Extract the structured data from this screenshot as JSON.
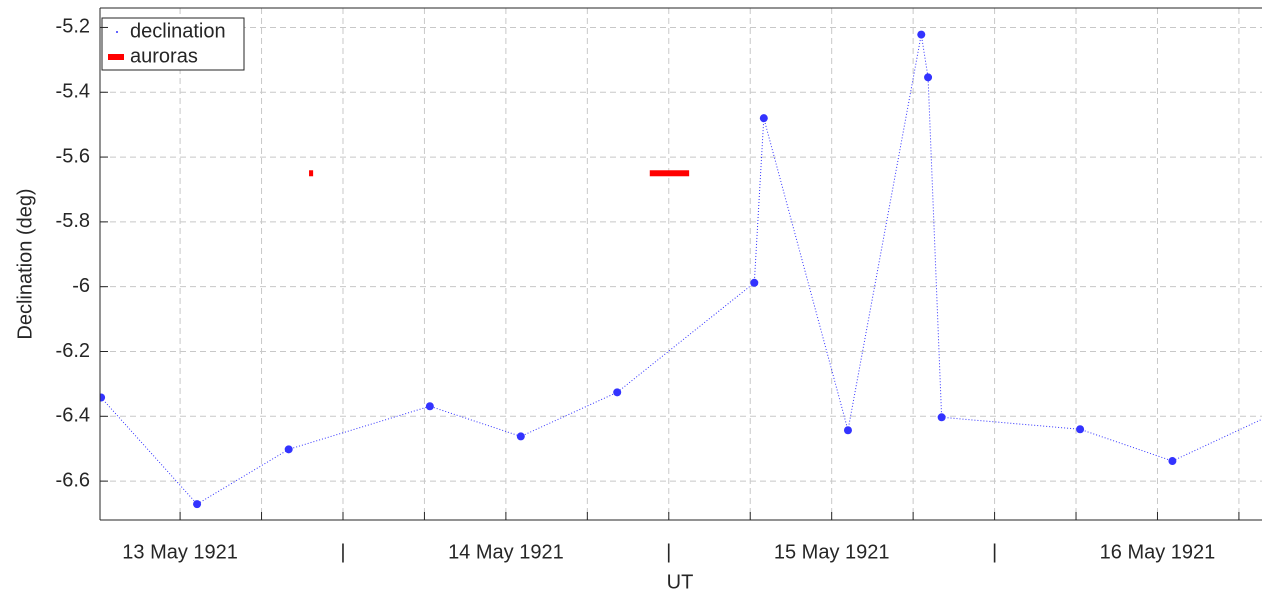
{
  "chart_data": {
    "type": "line",
    "xlabel": "UT",
    "ylabel": "Declination (deg)",
    "xlim": [
      -5.9,
      79.7
    ],
    "ylim": [
      -6.72,
      -5.14
    ],
    "xticks": [
      {
        "value": 0,
        "label": "13 May 1921"
      },
      {
        "value": 12,
        "label": "|"
      },
      {
        "value": 24,
        "label": "14 May 1921"
      },
      {
        "value": 36,
        "label": "|"
      },
      {
        "value": 48,
        "label": "15 May 1921"
      },
      {
        "value": 60,
        "label": "|"
      },
      {
        "value": 72,
        "label": "16 May 1921"
      }
    ],
    "xgrid_minor": [
      6,
      18,
      30,
      42,
      54,
      66,
      78
    ],
    "yticks": [
      -6.6,
      -6.4,
      -6.2,
      -6,
      -5.8,
      -5.6,
      -5.4,
      -5.2
    ],
    "grid": true,
    "legend": "upper left",
    "series": [
      {
        "name": "declination",
        "color": "#3333ff",
        "x": [
          -5.82,
          1.25,
          8.0,
          18.4,
          25.1,
          32.2,
          42.3,
          43.0,
          49.2,
          54.6,
          55.1,
          56.1,
          66.3,
          73.1,
          81.7
        ],
        "values": [
          -6.342,
          -6.671,
          -6.502,
          -6.369,
          -6.462,
          -6.326,
          -5.988,
          -5.48,
          -6.443,
          -5.222,
          -5.354,
          -6.403,
          -6.44,
          -6.538,
          -6.37
        ]
      },
      {
        "name": "auroras",
        "color": "#ff0000",
        "segments": [
          {
            "x": [
              9.5,
              9.8
            ],
            "value": -5.65
          },
          {
            "x": [
              34.6,
              37.5
            ],
            "value": -5.65
          }
        ]
      }
    ]
  }
}
